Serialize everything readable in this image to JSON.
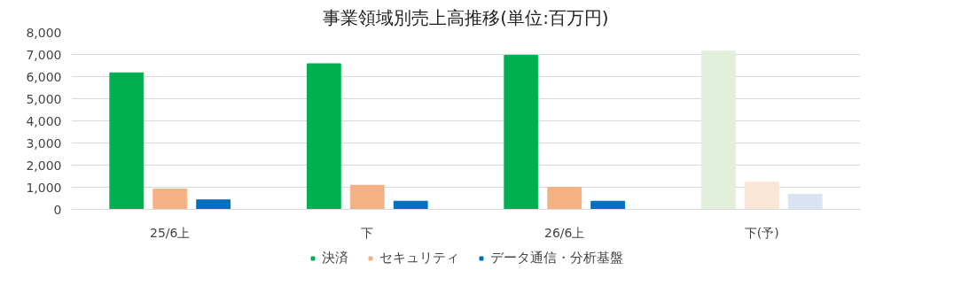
{
  "chart_data": {
    "type": "bar",
    "title": "事業領域別売上高推移(単位:百万円)",
    "categories": [
      "25/6上",
      "下",
      "26/6上",
      "下(予)"
    ],
    "series": [
      {
        "name": "決済",
        "color": "#00b050",
        "colors": [
          "#00b050",
          "#00b050",
          "#00b050",
          "#e2efda"
        ],
        "values": [
          6170,
          6580,
          6960,
          7150
        ]
      },
      {
        "name": "セキュリティ",
        "color": "#f4b183",
        "colors": [
          "#f4b183",
          "#f4b183",
          "#f4b183",
          "#fbe5d6"
        ],
        "values": [
          920,
          1090,
          990,
          1230
        ]
      },
      {
        "name": "データ通信・分析基盤",
        "color": "#0070c0",
        "colors": [
          "#0070c0",
          "#0070c0",
          "#0070c0",
          "#dae3f3"
        ],
        "values": [
          430,
          370,
          370,
          680
        ]
      }
    ],
    "ylim": [
      0,
      8000
    ],
    "yticks": [
      {
        "value": 0,
        "label": "0"
      },
      {
        "value": 1000,
        "label": "1,000"
      },
      {
        "value": 2000,
        "label": "2,000"
      },
      {
        "value": 3000,
        "label": "3,000"
      },
      {
        "value": 4000,
        "label": "4,000"
      },
      {
        "value": 5000,
        "label": "5,000"
      },
      {
        "value": 6000,
        "label": "6,000"
      },
      {
        "value": 7000,
        "label": "7,000"
      },
      {
        "value": 8000,
        "label": "8,000"
      }
    ],
    "grid": "y",
    "legend": "bottom"
  }
}
